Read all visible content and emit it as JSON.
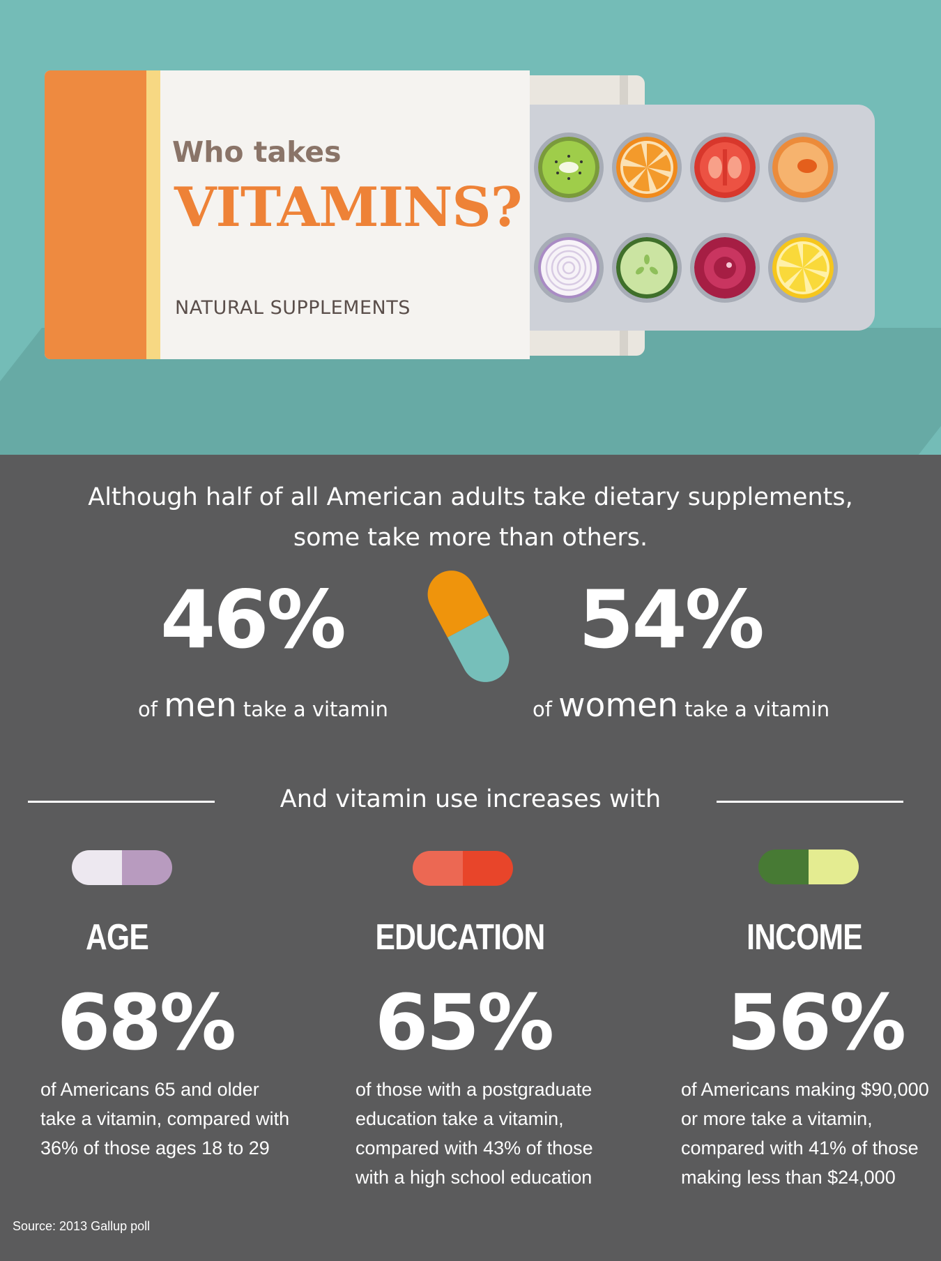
{
  "header": {
    "title_line1": "Who takes",
    "title_line2": "VITAMINS?",
    "subtitle": "NATURAL SUPPLEMENTS"
  },
  "intro": {
    "line1": "Although half of all American adults take dietary supplements,",
    "line2": "some take more than others."
  },
  "gender": {
    "men": {
      "percent": "46%",
      "prefix": "of",
      "group": "men",
      "suffix": "take a vitamin"
    },
    "women": {
      "percent": "54%",
      "prefix": "of",
      "group": "women",
      "suffix": "take a vitamin"
    }
  },
  "increase_heading": "And vitamin use increases with",
  "categories": [
    {
      "title": "AGE",
      "percent": "68%",
      "desc": [
        "of Americans 65 and older",
        "take a vitamin, compared with",
        "36% of those ages 18 to 29"
      ],
      "capsule_colors": [
        "#ede8f0",
        "#b89bbf"
      ]
    },
    {
      "title": "EDUCATION",
      "percent": "65%",
      "desc": [
        "of those with a postgraduate",
        "education take a vitamin,",
        "compared with 43% of those",
        "with a high school education"
      ],
      "capsule_colors": [
        "#ec6853",
        "#e8452a"
      ]
    },
    {
      "title": "INCOME",
      "percent": "56%",
      "desc": [
        "of Americans making $90,000",
        "or more take a vitamin,",
        "compared with 41% of those",
        "making less than $24,000"
      ],
      "capsule_colors": [
        "#477a34",
        "#e4ec91"
      ]
    }
  ],
  "source": "Source:  2013 Gallup poll",
  "icons": {
    "blister_fruits": [
      "kiwi-slice-icon",
      "orange-slice-icon",
      "tomato-slice-icon",
      "peach-slice-icon",
      "onion-slice-icon",
      "cucumber-slice-icon",
      "beet-slice-icon",
      "lemon-slice-icon"
    ]
  }
}
